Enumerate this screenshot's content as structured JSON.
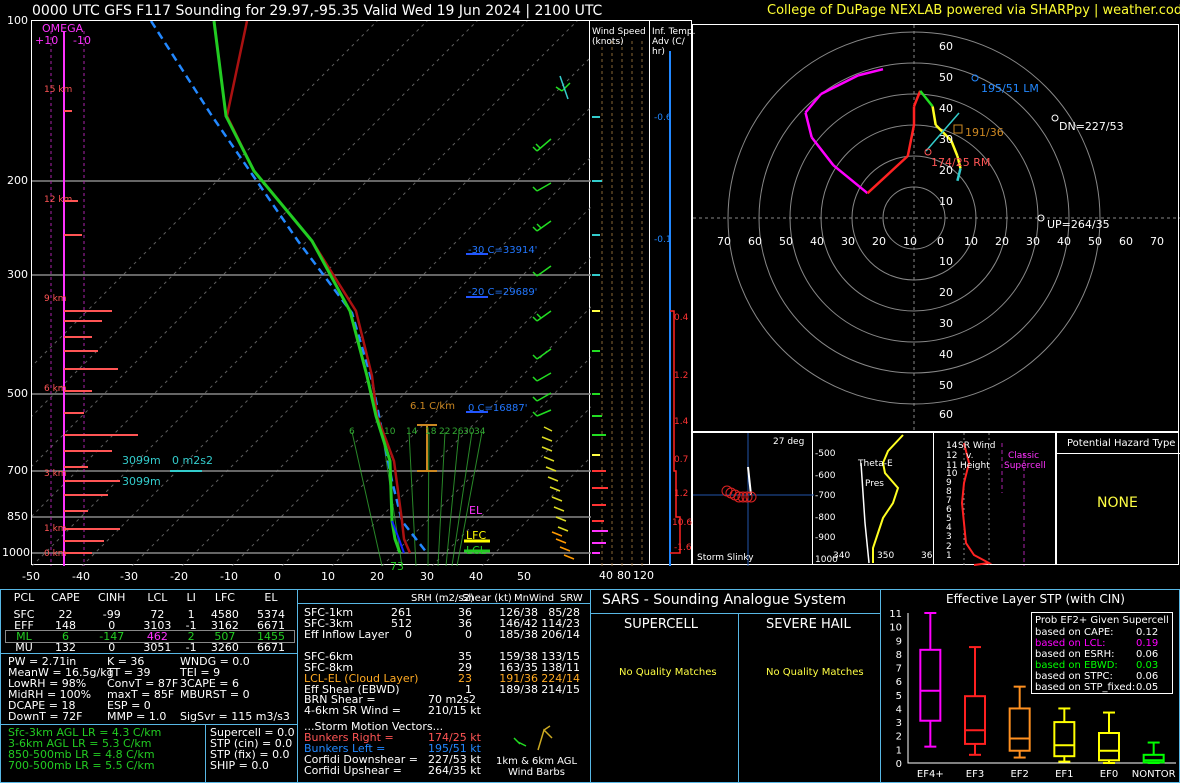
{
  "header": {
    "title": "0000 UTC GFS F117 Sounding for 29.97,-95.35  Valid  Wed 19 Jun 2024 | 2100 UTC",
    "credit": "College of DuPage NEXLAB powered via SHARPpy | weather.cod.edu"
  },
  "skewt": {
    "pressure_labels": [
      "100",
      "200",
      "300",
      "500",
      "700",
      "850",
      "1000"
    ],
    "temp_labels": [
      "-50",
      "-40",
      "-30",
      "-20",
      "-10",
      "0",
      "10",
      "20",
      "30",
      "40",
      "50"
    ],
    "omega_label": "OMEGA",
    "omega_ticks": [
      "+10",
      "-10"
    ],
    "height_labels": [
      "15 km",
      "12 km",
      "9 km",
      "6 km",
      "3 km",
      "1 km",
      "0 km"
    ],
    "annotations": {
      "c_30": "-30 C=33914'",
      "c_20": "-20 C=29689'",
      "c_0": "0 C=16887'",
      "lapse": "6.1 C/km",
      "inflow_top": "3099m",
      "inflow_srh": "0 m2s2",
      "inflow_bot": "3099m",
      "el": "EL",
      "lfc": "LFC",
      "lcl": "LCL",
      "sfc_temp": "73",
      "mixing_ratios": [
        "6",
        "10",
        "14",
        "18",
        "22",
        "26",
        "30",
        "34"
      ]
    }
  },
  "wind_speed_panel": {
    "label1": "Wind Speed",
    "label2": "(knots)",
    "ticks": [
      "40",
      "80",
      "120"
    ]
  },
  "temp_adv_panel": {
    "label1": "Inf. Temp.",
    "label2": "Adv (C/",
    "label3": "hr)",
    "values": [
      "-0.6",
      "-0.1",
      "0.4",
      "1.2",
      "1.4",
      "0.7",
      "1.2",
      "10.6",
      "-1.6"
    ]
  },
  "hodograph": {
    "rings": [
      "60",
      "50",
      "40",
      "30",
      "20",
      "10"
    ],
    "x_labels": [
      "70",
      "60",
      "50",
      "40",
      "30",
      "20",
      "10",
      "0",
      "10",
      "20",
      "30",
      "40",
      "50",
      "60",
      "70"
    ],
    "y_labels_up": [
      "60",
      "50",
      "40",
      "30",
      "20",
      "10"
    ],
    "y_labels_down": [
      "10",
      "20",
      "30",
      "40",
      "50",
      "60"
    ],
    "lm": "195/51 LM",
    "dn": "DN=227/53",
    "rm": "174/25 RM",
    "up": "UP=264/35",
    "mean": "191/36",
    "hodo_points": [
      [
        -10,
        48
      ],
      [
        -18,
        46
      ],
      [
        -30,
        40
      ],
      [
        -35,
        34
      ],
      [
        -33,
        26
      ],
      [
        -26,
        17
      ],
      [
        -15,
        8
      ],
      [
        -2,
        20
      ],
      [
        0,
        30
      ],
      [
        0,
        36
      ],
      [
        2,
        41
      ],
      [
        6,
        36
      ],
      [
        7,
        30
      ],
      [
        12,
        25
      ],
      [
        14,
        20
      ],
      [
        15,
        16
      ],
      [
        14,
        12
      ]
    ]
  },
  "storm_slinky": {
    "deg": "27 deg",
    "label": "Storm Slinky"
  },
  "theta_panel": {
    "labels": [
      "-500",
      "-600",
      "-700",
      "-800",
      "-900",
      "1000"
    ],
    "thetae": "Theta-E",
    "pres": "Pres",
    "xticks": [
      "340",
      "350",
      "36"
    ]
  },
  "srwind_panel": {
    "title1": "SR Wind",
    "title2": "v.",
    "title3": "Height",
    "yticks": [
      "14",
      "12",
      "11",
      "10",
      "9",
      "8",
      "7",
      "6",
      "5",
      "4",
      "3",
      "2",
      "1"
    ],
    "classic": "Classic",
    "supercell": "Supercell"
  },
  "hazard": {
    "title": "Potential Hazard Type",
    "value": "NONE"
  },
  "parcels": {
    "headers": [
      "PCL",
      "CAPE",
      "CINH",
      "LCL",
      "LI",
      "LFC",
      "EL"
    ],
    "rows": [
      [
        "SFC",
        "22",
        "-99",
        "72",
        "1",
        "4580",
        "5374"
      ],
      [
        "EFF",
        "148",
        "0",
        "3103",
        "-1",
        "3162",
        "6671"
      ],
      [
        "ML",
        "6",
        "-147",
        "462",
        "2",
        "507",
        "1455"
      ],
      [
        "MU",
        "132",
        "0",
        "3051",
        "-1",
        "3260",
        "6671"
      ]
    ]
  },
  "indices": {
    "col1": [
      "PW = 2.71in",
      "MeanW = 16.5g/kg",
      "LowRH = 98%",
      "MidRH = 100%",
      "DCAPE = 18",
      "DownT = 72F"
    ],
    "col2": [
      "K = 36",
      "TT = 39",
      "ConvT = 87F",
      "maxT = 85F",
      "ESP = 0",
      "MMP = 1.0"
    ],
    "col3": [
      "WNDG = 0.0",
      "TEI = 9",
      "3CAPE = 6",
      "MBURST = 0",
      "",
      ""
    ],
    "sigsvr": "SigSvr = 115 m3/s3"
  },
  "lapse_rates": [
    "Sfc-3km AGL LR = 4.3 C/km",
    "3-6km AGL LR = 5.3 C/km",
    "850-500mb LR = 4.8 C/km",
    "700-500mb LR = 5.5 C/km"
  ],
  "composites": [
    "Supercell = 0.0",
    "STP (cin) = 0.0",
    "STP (fix) = 0.0",
    "SHIP = 0.0"
  ],
  "kinematics": {
    "headers": [
      "SRH (m2/s2)",
      "Shear (kt)",
      "MnWind",
      "SRW"
    ],
    "rows": [
      [
        "SFC-1km",
        "261",
        "36",
        "126/38",
        "85/28"
      ],
      [
        "SFC-3km",
        "512",
        "36",
        "146/42",
        "114/23"
      ],
      [
        "Eff Inflow Layer",
        "0",
        "0",
        "185/38",
        "206/14"
      ],
      [
        "",
        "",
        "",
        "",
        ""
      ],
      [
        "SFC-6km",
        "",
        "35",
        "159/38",
        "133/15"
      ],
      [
        "SFC-8km",
        "",
        "29",
        "163/35",
        "138/11"
      ],
      [
        "LCL-EL (Cloud Layer)",
        "",
        "23",
        "191/36",
        "224/14"
      ],
      [
        "Eff Shear (EBWD)",
        "",
        "1",
        "189/38",
        "214/15"
      ]
    ],
    "brn": [
      "BRN Shear =",
      "70 m2s2"
    ],
    "srwind46": [
      "4-6km SR Wind =",
      "210/15 kt"
    ],
    "motion_title": "...Storm Motion Vectors...",
    "motion": [
      [
        "Bunkers Right =",
        "174/25 kt"
      ],
      [
        "Bunkers Left =",
        "195/51 kt"
      ],
      [
        "Corfidi Downshear =",
        "227/53 kt"
      ],
      [
        "Corfidi Upshear =",
        "264/35 kt"
      ]
    ],
    "barbs1": "1km & 6km AGL",
    "barbs2": "Wind Barbs"
  },
  "sars": {
    "title": "SARS - Sounding Analogue System",
    "supercell": "SUPERCELL",
    "hail": "SEVERE HAIL",
    "match1": "No Quality Matches",
    "match2": "No Quality Matches"
  },
  "chart_data": {
    "type": "box",
    "title": "Effective Layer STP (with CIN)",
    "categories": [
      "EF4+",
      "EF3",
      "EF2",
      "EF1",
      "EF0",
      "NONTOR"
    ],
    "ylim": [
      0,
      11
    ],
    "yticks": [
      "0",
      "1",
      "2",
      "3",
      "4",
      "5",
      "6",
      "7",
      "8",
      "9",
      "10",
      "11"
    ],
    "boxes": [
      {
        "min": 1.2,
        "q1": 3.1,
        "median": 5.3,
        "q3": 8.3,
        "max": 11.0,
        "color": "#ff00ff"
      },
      {
        "min": 0.6,
        "q1": 1.4,
        "median": 2.4,
        "q3": 4.9,
        "max": 8.5,
        "color": "#ff2020"
      },
      {
        "min": 0.4,
        "q1": 0.9,
        "median": 1.8,
        "q3": 4.0,
        "max": 5.6,
        "color": "#ff9020"
      },
      {
        "min": 0.1,
        "q1": 0.5,
        "median": 1.3,
        "q3": 3.0,
        "max": 4.0,
        "color": "#ffff00"
      },
      {
        "min": 0.0,
        "q1": 0.2,
        "median": 0.9,
        "q3": 2.2,
        "max": 3.7,
        "color": "#ffff00"
      },
      {
        "min": 0.0,
        "q1": 0.05,
        "median": 0.2,
        "q3": 0.6,
        "max": 1.5,
        "color": "#00ff00"
      }
    ],
    "legend_title": "Prob EF2+ Given Supercell",
    "legend": [
      {
        "label": "based on CAPE:",
        "value": "0.12",
        "color": "#ffffff"
      },
      {
        "label": "based on LCL:",
        "value": "0.19",
        "color": "#ff00ff"
      },
      {
        "label": "based on ESRH:",
        "value": "0.06",
        "color": "#ffffff"
      },
      {
        "label": "based on EBWD:",
        "value": "0.03",
        "color": "#00ff00"
      },
      {
        "label": "based on STPC:",
        "value": "0.06",
        "color": "#ffffff"
      },
      {
        "label": "based on STP_fixed:",
        "value": "0.05",
        "color": "#ffffff"
      }
    ]
  }
}
